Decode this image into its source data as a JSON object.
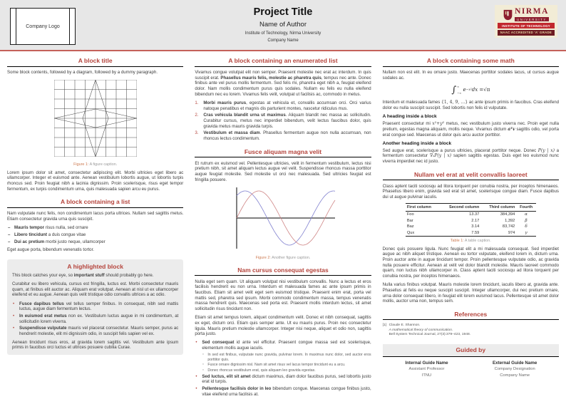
{
  "header": {
    "logo_text": "Company Logo",
    "title": "Project Title",
    "author": "Name of Author",
    "institute": "Institute of Technology, Nirma University",
    "company": "Company Name",
    "nirma": {
      "name": "NIRMA",
      "sub": "UNIVERSITY",
      "line1": "INSTITUTE OF TECHNOLOGY",
      "line2": "NAAC ACCREDITED 'A' GRADE"
    }
  },
  "col1": {
    "block1": {
      "title": "A block title",
      "p1": "Some block contents, followed by a diagram, followed by a dummy paragraph.",
      "caption_label": "Figure 1:",
      "caption_text": " A figure caption.",
      "p2": "Lorem ipsum dolor sit amet, consectetur adipiscing elit. Morbi ultricies eget libero ac ullamcorper. Integer et euismod ante. Aenean vestibulum lobortis augue, ut lobortis turpis rhoncus sed. Proin feugiat nibh a lacinia dignissim. Proin scelerisque, risus eget tempor fermentum, ex turpis condimentum urna, quis malesuada sapien arcu eu purus."
    },
    "block2": {
      "title": "A block containing a list",
      "p1": "Nam vulputate nunc felis, non condimentum lacus porta ultrices. Nullam sed sagittis metus. Etiam consectetur gravida urna quis suscipit.",
      "items": [
        {
          "b": "Mauris tempor",
          "t": " risus nulla, sed ornare"
        },
        {
          "b": "Libero tincidunt",
          "t": " a duis congue vitae"
        },
        {
          "b": "Dui ac pretium",
          "t": " morbi justo neque, ullamcorper"
        }
      ],
      "p2": "Eget augue porta, bibendum venenatis tortor."
    },
    "block3": {
      "title": "A highlighted block",
      "p1_pre": "This block catches your eye, so ",
      "p1_bold": "important stuff",
      "p1_post": " should probably go here.",
      "p2": "Curabitur eu libero vehicula, cursus est fringilla, luctus est. Morbi consectetur mauris quam, at finibus elit auctor ac. Aliquam erat volutpat. Aenean at nisl ut ex ullamcorper eleifend et eu augue. Aenean quis velit tristique odio convallis ultrices a ac odio.",
      "items": [
        {
          "b": "Fusce dapibus tellus",
          "t": " vel tellus semper finibus. In consequat, nibh sed mattis luctus, augue diam fermentum lectus."
        },
        {
          "b": "In euismod erat metus",
          "t": " non ex. Vestibulum luctus augue in mi condimentum, at sollicitudin lorem viverra."
        },
        {
          "b": "Suspendisse vulputate",
          "t": " mauris vel placerat consectetur. Mauris semper, purus ac hendrerit molestie, elit mi dignissim odio, in suscipit felis sapien vel ex."
        }
      ],
      "p3": "Aenean tincidunt risus eros, at gravida lorem sagittis vel. Vestibulum ante ipsum primis in faucibus orci luctus et ultrices posuere cubilia Curae."
    }
  },
  "col2": {
    "block1": {
      "title": "A block containing an enumerated list",
      "p1_pre": "Vivamus congue volutpat elit non semper. Praesent molestie nec erat ac interdum. In quis suscipit erat. ",
      "p1_bold": "Phasellus mauris felis, molestie ac pharetra quis",
      "p1_post": ", tempus nec ante. Donec finibus ante vel purus mollis fermentum. Sed felis mi, pharetra eget nibh a, feugiat eleifend dolor. Nam mollis condimentum purus quis sodales. Nullam eu felis eu nulla eleifend bibendum nec eu lorem. Vivamus felis velit, volutpat ut facilisis ac, commodo in metus.",
      "items": [
        {
          "n": "1.",
          "b": "Morbi mauris purus",
          "t": ", egestas at vehicula et, convallis accumsan orci. Orci varius natoque penatibus et magnis dis parturient montes, nascetur ridiculus mus."
        },
        {
          "n": "2.",
          "b": "Cras vehicula blandit urna ut maximus",
          "t": ". Aliquam blandit nec massa ac sollicitudin. Curabitur cursus, metus nec imperdiet bibendum, velit lectus faucibus dolor, quis gravida metus mauris gravida turpis."
        },
        {
          "n": "3.",
          "b": "Vestibulum et massa diam",
          "t": ". Phasellus fermentum augue non nulla accumsan, non rhoncus lectus condimentum."
        }
      ]
    },
    "block2": {
      "title": "Fusce aliquam magna velit",
      "p1": "Et rutrum ex euismod vel. Pellentesque ultricies, velit in fermentum vestibulum, lectus nisi pretium nibh, sit amet aliquam lectus augue vel velit. Suspendisse rhoncus massa porttitor augue feugiat molestie. Sed molestie ut orci nec malesuada. Sed ultricies feugiat est fringilla posuere.",
      "caption_label": "Figure 2:",
      "caption_text": " Another figure caption."
    },
    "block3": {
      "title": "Nam cursus consequat egestas",
      "p1": "Nulla eget sem quam. Ut aliquam volutpat nisi vestibulum convallis. Nunc a lectus et eros facilisis hendrerit eu non urna. Interdum et malesuada fames ac ante ipsum primis in faucibus. Etiam sit amet velit eget sem euismod tristique. Praesent enim erat, porta vel mattis sed, pharetra sed ipsum. Morbi commodo condimentum massa, tempus venenatis massa hendrerit quis. Maecenas sed porta est. Praesent mollis interdum lectus, sit amet sollicitudin risus tincidunt non.",
      "p2": "Etiam sit amet tempus lorem, aliquet condimentum velit. Donec et nibh consequat, sagittis ex eget, dictum orci. Etiam quis semper ante. Ut eu mauris purus. Proin nec consectetur ligula. Mauris pretium molestie ullamcorper. Integer nisi neque, aliquet et odio non, sagittis porta justo.",
      "item1": {
        "b": "Sed consequat",
        "t": " id ante vel efficitur. Praesent congue massa sed est scelerisque, elementum mollis augue iaculis."
      },
      "sub_items": [
        "In sed est finibus, vulputate nunc gravida, pulvinar lorem. In maximus nunc dolor, sed auctor eros porttitor quis.",
        "Fusce ornare dignissim nisl. Nam sit amet risus vel lacus tempor tincidunt eu a arcu.",
        "Donec rhoncus vestibulum erat, quis aliquam leo gravida egestas."
      ],
      "item2": {
        "b": "Sed luctus, elit sit amet",
        "t": " dictum maximus, diam dolor faucibus purus, sed lobortis justo erat id turpis."
      },
      "item3": {
        "b": "Pellentesque facilisis dolor in leo",
        "t": " bibendum congue. Maecenas congue finibus justo, vitae eleifend urna facilisis at."
      }
    }
  },
  "col3": {
    "block1": {
      "title": "A block containing some math",
      "p1": "Nullam non est elit. In eu ornare justo. Maecenas porttitor sodales lacus, ut cursus augue sodales ac.",
      "formula": {
        "integral": "∫",
        "upper": "∞",
        "lower": "−∞",
        "base": "e",
        "exponent": "−x²",
        "mid": " dx = ",
        "rhs": "√π"
      },
      "p2_pre": "Interdum et malesuada fames ",
      "p2_math": "{1, 4, 9, …}",
      "p2_post": " ac ante ipsum primis in faucibus. Cras eleifend dolor eu nulla suscipit suscipit. Sed lobortis non felis id vulputate.",
      "h1": "A heading inside a block",
      "p3_pre": "Praesent consectetur mi ",
      "p3_math1": "x²+y²",
      "p3_mid": " metus, nec vestibulum justo viverra nec. Proin eget nulla pretium, egestas magna aliquam, mollis neque. Vivamus dictum ",
      "p3_math2": "aᵀv",
      "p3_post": " sagittis odio, vel porta erat congue sed. Maecenas ut dolor quis arcu auctor porttitor.",
      "h2": "Another heading inside a block",
      "p4_pre": "Sed augue erat, scelerisque a purus ultricies, placerat porttitor neque. Donec ",
      "p4_math1": "P(y | x)",
      "p4_mid": " a fermentum consectetur ",
      "p4_math2": "∇ₓP(y | x)",
      "p4_post": " sapien sagittis egestas. Duis eget leo euismod nunc viverra imperdiet nec id justo."
    },
    "block2": {
      "title": "Nullam vel erat at velit convallis laoreet",
      "p1": "Class aptent taciti sociosqu ad litora torquent per conubia nostra, per inceptos himenaeos. Phasellus libero enim, gravida sed erat sit amet, scelerisque congue diam. Fusce dapibus dui ut augue pulvinar iaculis.",
      "table": {
        "headers": [
          "First column",
          "Second column",
          "Third column",
          "Fourth"
        ],
        "rows": [
          [
            "Foo",
            "13.37",
            "384,394",
            "α"
          ],
          [
            "Bar",
            "2.17",
            "1,392",
            "β"
          ],
          [
            "Baz",
            "3.14",
            "83,742",
            "δ"
          ],
          [
            "Qux",
            "7.59",
            "974",
            "γ"
          ]
        ]
      },
      "caption_label": "Table 1:",
      "caption_text": " A table caption.",
      "p2": "Donec quis posuere ligula. Nunc feugiat elit a mi malesuada consequat. Sed imperdiet augue ac nibh aliquet tristique. Aenean eu tortor vulputate, eleifend lorem in, dictum urna. Proin auctor ante in augue tincidunt tempor. Proin pellentesque vulputate odio, ac gravida nulla posuere efficitur. Aenean at velit vel dolor blandit molestie. Mauris laoreet commodo quam, non luctus nibh ullamcorper in. Class aptent taciti sociosqu ad litora torquent per conubia nostra, per inceptos himenaeos.",
      "p3": "Nulla varius finibus volutpat. Mauris molestie lorem tincidunt, iaculis libero at, gravida ante. Phasellus at felis eu neque suscipit suscipit. Integer ullamcorper, dui nec pretium ornare, urna dolor consequat libero, in feugiat elit lorem euismod lacus. Pellentesque sit amet dolor mollis, auctor urna non, tempus sem."
    },
    "block3": {
      "title": "References",
      "ref_index": "[1]",
      "ref_author": "Claude E. Shannon.",
      "ref_title": "A mathematical theory of communication.",
      "ref_journal": "Bell System Technical Journal, 27(3):379–423, 1948."
    },
    "block4": {
      "title": "Guided by",
      "internal": {
        "name": "Internal Guide Name",
        "role": "Assistant Professor",
        "org": "ITNU"
      },
      "external": {
        "name": "External Guide Name",
        "role": "Company Designation",
        "org": "Company Name"
      }
    }
  },
  "figures": {
    "figure1": {
      "type": "grid-star",
      "cols": 8,
      "rows": 8
    },
    "figure2": {
      "type": "line",
      "x_domain": [
        0,
        7
      ],
      "amplitude": 1,
      "series": [
        {
          "name": "cosine-curve",
          "fn": "cos",
          "phase": 0.6,
          "color": "#8080cf"
        },
        {
          "name": "sine-curve",
          "fn": "sin",
          "phase": 0,
          "color": "#cf8585"
        }
      ]
    }
  },
  "colors": {
    "accent": "#b5443c",
    "caption_label": "#cd7b52",
    "header_rule": "#c4615a",
    "nirma_maroon": "#8c1d2f",
    "nirma_red": "#c1272d",
    "nirma_dark": "#6d1b22",
    "nirma_cream": "#f2ecd6"
  }
}
